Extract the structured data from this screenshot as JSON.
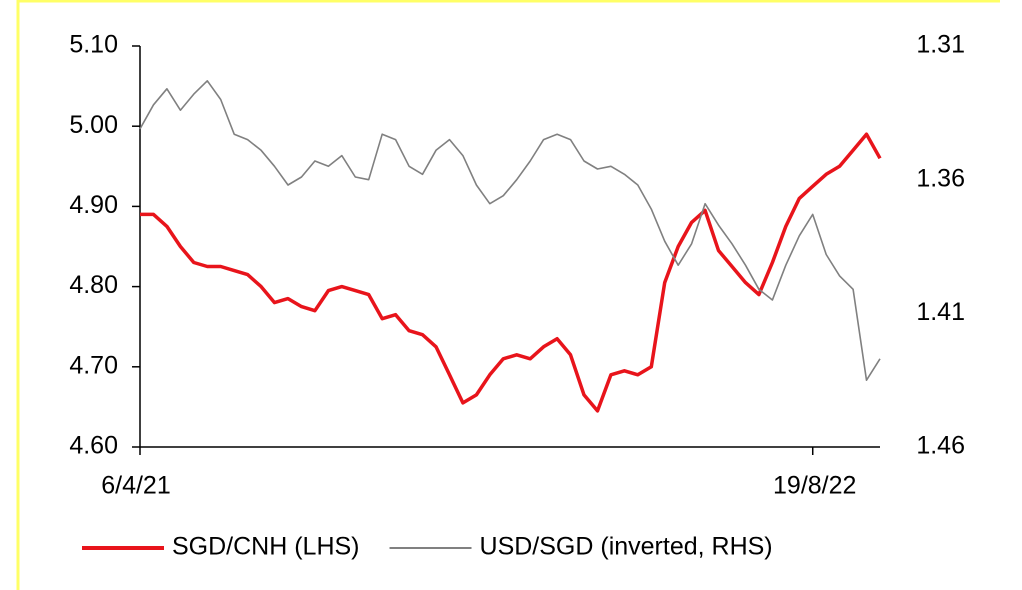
{
  "chart_data": {
    "type": "line",
    "categories": [
      "6/4/21",
      null,
      null,
      null,
      null,
      null,
      null,
      null,
      null,
      null,
      null,
      null,
      null,
      null,
      null,
      null,
      null,
      null,
      null,
      null,
      null,
      null,
      null,
      null,
      null,
      null,
      null,
      null,
      null,
      null,
      null,
      null,
      null,
      null,
      null,
      null,
      null,
      null,
      null,
      null,
      null,
      null,
      null,
      null,
      null,
      null,
      null,
      null,
      null,
      null,
      "19/8/22",
      null,
      null,
      null,
      null,
      null
    ],
    "series": [
      {
        "name": "SGD/CNH (LHS)",
        "color": "#e8141b",
        "axis": "y",
        "values": [
          4.89,
          4.89,
          4.875,
          4.85,
          4.83,
          4.825,
          4.825,
          4.82,
          4.815,
          4.8,
          4.78,
          4.785,
          4.775,
          4.77,
          4.795,
          4.8,
          4.795,
          4.79,
          4.76,
          4.765,
          4.745,
          4.74,
          4.725,
          4.69,
          4.655,
          4.665,
          4.69,
          4.71,
          4.715,
          4.71,
          4.725,
          4.735,
          4.715,
          4.665,
          4.645,
          4.69,
          4.695,
          4.69,
          4.7,
          4.805,
          4.85,
          4.88,
          4.895,
          4.845,
          4.825,
          4.805,
          4.79,
          4.83,
          4.875,
          4.91,
          4.925,
          4.94,
          4.95,
          4.97,
          4.99,
          4.96
        ]
      },
      {
        "name": "USD/SGD (inverted, RHS)",
        "color": "#808080",
        "axis": "y2",
        "values": [
          1.341,
          1.332,
          1.326,
          1.334,
          1.328,
          1.323,
          1.33,
          1.343,
          1.345,
          1.349,
          1.355,
          1.362,
          1.359,
          1.353,
          1.355,
          1.351,
          1.359,
          1.36,
          1.343,
          1.345,
          1.355,
          1.358,
          1.349,
          1.345,
          1.351,
          1.362,
          1.369,
          1.366,
          1.36,
          1.353,
          1.345,
          1.343,
          1.345,
          1.353,
          1.356,
          1.355,
          1.358,
          1.362,
          1.371,
          1.383,
          1.392,
          1.384,
          1.369,
          1.377,
          1.384,
          1.392,
          1.401,
          1.405,
          1.392,
          1.381,
          1.373,
          1.388,
          1.396,
          1.401,
          1.435,
          1.427
        ]
      }
    ],
    "ylim": [
      4.6,
      5.1
    ],
    "yticks": [
      {
        "value": 4.6,
        "label": "4.60"
      },
      {
        "value": 4.7,
        "label": "4.70"
      },
      {
        "value": 4.8,
        "label": "4.80"
      },
      {
        "value": 4.9,
        "label": "4.90"
      },
      {
        "value": 5.0,
        "label": "5.00"
      },
      {
        "value": 5.1,
        "label": "5.10"
      }
    ],
    "y2lim": [
      1.31,
      1.46
    ],
    "y2ticks": [
      1.31,
      1.36,
      1.41,
      1.46
    ],
    "y2_inverted": true,
    "grid": false,
    "legend": "bottom"
  }
}
